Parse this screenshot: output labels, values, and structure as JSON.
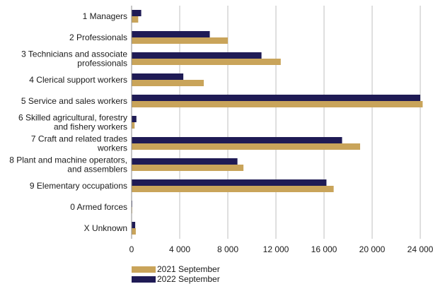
{
  "colors": {
    "series_2021": "#c9a45a",
    "series_2022": "#1f1b55",
    "grid": "#bfbfbf",
    "axis": "#8c8c8c"
  },
  "chart_data": {
    "type": "bar",
    "orientation": "horizontal",
    "categories": [
      [
        "1 Managers"
      ],
      [
        "2 Professionals"
      ],
      [
        "3 Technicians and associate",
        "professionals"
      ],
      [
        "4 Clerical support workers"
      ],
      [
        "5 Service and sales workers"
      ],
      [
        "6 Skilled agricultural, forestry",
        "and fishery workers"
      ],
      [
        "7 Craft and related trades",
        "workers"
      ],
      [
        "8 Plant and machine operators,",
        "and assemblers"
      ],
      [
        "9 Elementary occupations"
      ],
      [
        "0 Armed forces"
      ],
      [
        "X Unknown"
      ]
    ],
    "series": [
      {
        "name": "2022 September",
        "values": [
          800,
          6500,
          10800,
          4300,
          24000,
          400,
          17500,
          8800,
          16200,
          50,
          300
        ]
      },
      {
        "name": "2021 September",
        "values": [
          550,
          8000,
          12400,
          6000,
          24200,
          250,
          19000,
          9300,
          16800,
          50,
          350
        ]
      }
    ],
    "xlim": [
      0,
      24000
    ],
    "xticks": [
      0,
      4000,
      8000,
      12000,
      16000,
      20000,
      24000
    ],
    "xtick_labels": [
      "0",
      "4 000",
      "8 000",
      "12 000",
      "16 000",
      "20 000",
      "24 000"
    ],
    "grid": true,
    "legend_placement": "bottom-left"
  },
  "legend": [
    {
      "label": "2021 September",
      "color": "#c9a45a"
    },
    {
      "label": "2022 September",
      "color": "#1f1b55"
    }
  ]
}
